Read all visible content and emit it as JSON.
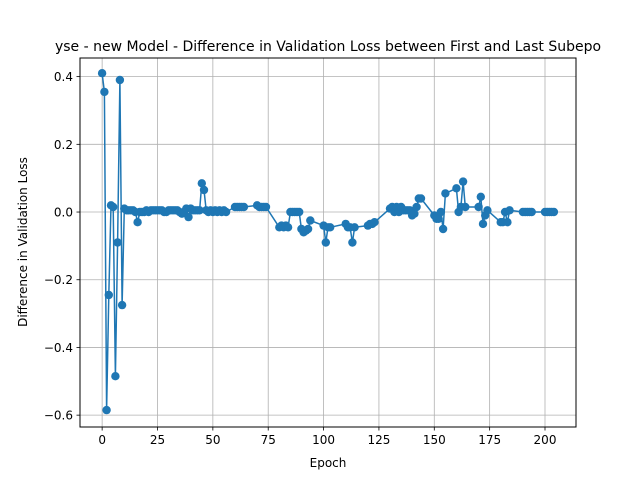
{
  "chart_data": {
    "type": "line",
    "title": "yse - new Model - Difference in Validation Loss between First and Last Subepo",
    "xlabel": "Epoch",
    "ylabel": "Difference in Validation Loss",
    "xlim": [
      -10,
      214
    ],
    "ylim": [
      -0.635,
      0.455
    ],
    "grid": true,
    "series_color": "#1f77b4",
    "x_ticks": [
      {
        "value": 0,
        "label": "0"
      },
      {
        "value": 25,
        "label": "25"
      },
      {
        "value": 50,
        "label": "50"
      },
      {
        "value": 75,
        "label": "75"
      },
      {
        "value": 100,
        "label": "100"
      },
      {
        "value": 125,
        "label": "125"
      },
      {
        "value": 150,
        "label": "150"
      },
      {
        "value": 175,
        "label": "175"
      },
      {
        "value": 200,
        "label": "200"
      }
    ],
    "y_ticks": [
      {
        "value": -0.6,
        "label": "−0.6"
      },
      {
        "value": -0.4,
        "label": "−0.4"
      },
      {
        "value": -0.2,
        "label": "−0.2"
      },
      {
        "value": 0.0,
        "label": "0.0"
      },
      {
        "value": 0.2,
        "label": "0.2"
      },
      {
        "value": 0.4,
        "label": "0.4"
      }
    ],
    "series": [
      {
        "x": [
          0,
          1,
          2,
          3,
          4,
          5,
          6,
          7,
          8,
          9,
          10,
          11,
          12,
          13,
          14,
          15,
          16,
          17,
          18,
          19,
          20,
          21,
          22,
          23,
          24,
          25,
          26,
          27,
          28,
          29,
          30,
          31,
          32,
          33,
          34,
          35,
          36,
          37,
          38,
          39,
          40,
          41,
          42,
          43,
          44,
          45,
          46,
          47,
          48,
          49,
          50,
          51,
          52,
          53,
          54,
          55,
          56,
          60,
          61,
          62,
          63,
          64,
          70,
          71,
          72,
          73,
          74,
          80,
          81,
          82,
          83,
          84,
          85,
          86,
          87,
          88,
          89,
          90,
          91,
          92,
          93,
          94,
          100,
          101,
          102,
          103,
          110,
          111,
          112,
          113,
          114,
          120,
          121,
          122,
          123,
          130,
          131,
          132,
          133,
          134,
          135,
          136,
          137,
          138,
          139,
          140,
          141,
          142,
          143,
          144,
          150,
          151,
          152,
          153,
          154,
          155,
          160,
          161,
          162,
          163,
          164,
          170,
          171,
          172,
          173,
          174,
          180,
          181,
          182,
          183,
          184,
          190,
          191,
          192,
          193,
          194,
          200,
          201,
          202,
          203,
          204
        ],
        "y": [
          0.41,
          0.355,
          -0.585,
          -0.245,
          0.02,
          0.015,
          -0.485,
          -0.09,
          0.39,
          -0.275,
          0.01,
          0.005,
          0.005,
          0.005,
          0.005,
          0.0,
          -0.03,
          0.0,
          0.0,
          0.0,
          0.005,
          0.0,
          0.005,
          0.005,
          0.005,
          0.005,
          0.005,
          0.005,
          0.0,
          0.0,
          0.005,
          0.005,
          0.005,
          0.005,
          0.005,
          0.0,
          -0.005,
          0.0,
          0.01,
          -0.015,
          0.01,
          0.005,
          0.005,
          0.005,
          0.005,
          0.085,
          0.065,
          0.005,
          0.0,
          0.005,
          0.0,
          0.005,
          0.0,
          0.005,
          0.0,
          0.005,
          0.0,
          0.015,
          0.015,
          0.015,
          0.015,
          0.015,
          0.02,
          0.015,
          0.015,
          0.015,
          0.015,
          -0.045,
          -0.04,
          -0.045,
          -0.04,
          -0.045,
          0.0,
          0.0,
          0.0,
          0.0,
          0.0,
          -0.05,
          -0.06,
          -0.055,
          -0.05,
          -0.025,
          -0.04,
          -0.09,
          -0.045,
          -0.045,
          -0.035,
          -0.045,
          -0.045,
          -0.09,
          -0.045,
          -0.04,
          -0.035,
          -0.035,
          -0.03,
          0.01,
          0.015,
          0.0,
          0.015,
          0.0,
          0.015,
          0.005,
          0.005,
          0.005,
          0.005,
          -0.01,
          -0.005,
          0.015,
          0.04,
          0.04,
          -0.01,
          -0.02,
          -0.02,
          0.0,
          -0.05,
          0.055,
          0.07,
          0.0,
          0.015,
          0.09,
          0.015,
          0.015,
          0.045,
          -0.035,
          -0.01,
          0.005,
          -0.03,
          -0.03,
          0.0,
          -0.03,
          0.005,
          0.0,
          0.0,
          0.0,
          0.0,
          0.0,
          0.0,
          0.0,
          0.0,
          0.0,
          0.0
        ]
      }
    ]
  }
}
